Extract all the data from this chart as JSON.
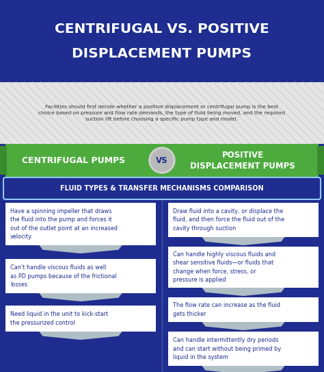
{
  "title_line1": "CENTRIFUGAL VS. POSITIVE",
  "title_line2": "DISPLACEMENT PUMPS",
  "subtitle": "Facilities should first decide whether a positive displacement or centrifugal pump is the best\nchoice based on pressure and flow rate demands, the type of fluid being moved, and the required\nsuction lift before choosing a specific pump type and model.",
  "vs_label_left": "CENTRIFUGAL PUMPS",
  "vs_label_right": "POSITIVE\nDISPLACEMENT PUMPS",
  "vs_circle": "VS",
  "section_header": "FLUID TYPES & TRANSFER MECHANISMS COMPARISON",
  "left_items": [
    "Have a spinning impeller that draws\nthe fluid into the pump and forces it\nout of the outlet point at an increased\nvelocity.",
    "Can't handle viscous fluids as well\nas PD pumps because of the frictional\nlosses",
    "Need liquid in the unit to kick-start\nthe pressurized control"
  ],
  "right_items": [
    "Draw fluid into a cavity, or displace the\nfluid, and then force the fluid out of the\ncavity through suction",
    "Can handle highly viscous fluids and\nshear sensitive fluids—or fluids that\nchange when force, stress, or\npressure is applied",
    "The flow rate can increase as the fluid\ngets thicker",
    "Can handle intermittently dry periods\nand can start without being primed by\nliquid in the system"
  ],
  "bg_dark_blue": "#1e2d8f",
  "bg_bottom_blue": "#1e2d8f",
  "subtitle_bg": "#e8e8e8",
  "stripe_color": "#d0d0d0",
  "green_color": "#4dab3e",
  "green_dark": "#3a8a2e",
  "white": "#ffffff",
  "card_text_color": "#1e2d8f",
  "arrow_tab_color": "#b0bec5",
  "section_border_color": "#90caf9",
  "divider_color": "#5575bb",
  "vs_circle_outer": "#d0d0d0",
  "vs_circle_inner": "#b8b8b8"
}
